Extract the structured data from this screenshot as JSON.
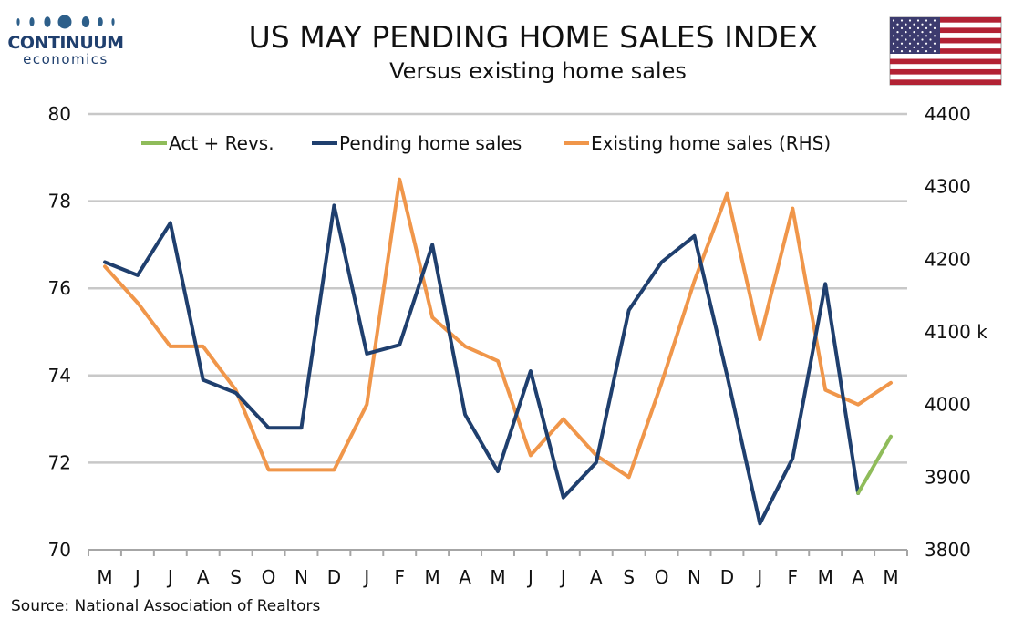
{
  "brand": {
    "name": "CONTINUUM",
    "tagline": "economics",
    "accent": "#2d5f8a"
  },
  "flag_icon": "us-flag-icon",
  "source": "Source: National Association of Realtors",
  "chart_data": {
    "type": "line",
    "title": "US MAY PENDING HOME SALES INDEX",
    "subtitle": "Versus existing home sales",
    "categories": [
      "M",
      "J",
      "J",
      "A",
      "S",
      "O",
      "N",
      "D",
      "J",
      "F",
      "M",
      "A",
      "M",
      "J",
      "J",
      "A",
      "S",
      "O",
      "N",
      "D",
      "J",
      "F",
      "M",
      "A",
      "M"
    ],
    "y_left": {
      "min": 70,
      "max": 80,
      "ticks": [
        "70",
        "72",
        "74",
        "76",
        "78",
        "80"
      ]
    },
    "y_right": {
      "min": 3800,
      "max": 4400,
      "ticks": [
        "3800",
        "3900",
        "4000",
        "4100",
        "4200",
        "4300",
        "4400"
      ],
      "unit": "k",
      "unit_at": "4100"
    },
    "grid": true,
    "legend_position": "top",
    "series": [
      {
        "name": "Act + Revs.",
        "axis": "left",
        "color": "#8fbc5a",
        "values": [
          null,
          null,
          null,
          null,
          null,
          null,
          null,
          null,
          null,
          null,
          null,
          null,
          null,
          null,
          null,
          null,
          null,
          null,
          null,
          null,
          null,
          null,
          null,
          71.3,
          72.6
        ]
      },
      {
        "name": "Pending home sales",
        "axis": "left",
        "color": "#1f3f6e",
        "values": [
          76.6,
          76.3,
          77.5,
          73.9,
          73.6,
          72.8,
          72.8,
          77.9,
          74.5,
          74.7,
          77.0,
          73.1,
          71.8,
          74.1,
          71.2,
          72.0,
          75.5,
          76.6,
          77.2,
          74.0,
          70.6,
          72.1,
          76.1,
          71.3,
          null
        ]
      },
      {
        "name": "Existing home sales (RHS)",
        "axis": "right",
        "color": "#f0964a",
        "values": [
          4190,
          4140,
          4080,
          4080,
          4020,
          3910,
          3910,
          3910,
          4000,
          4310,
          4120,
          4080,
          4060,
          3930,
          3980,
          3930,
          3900,
          4030,
          4170,
          4290,
          4090,
          4270,
          4020,
          4000,
          4030
        ]
      }
    ]
  }
}
